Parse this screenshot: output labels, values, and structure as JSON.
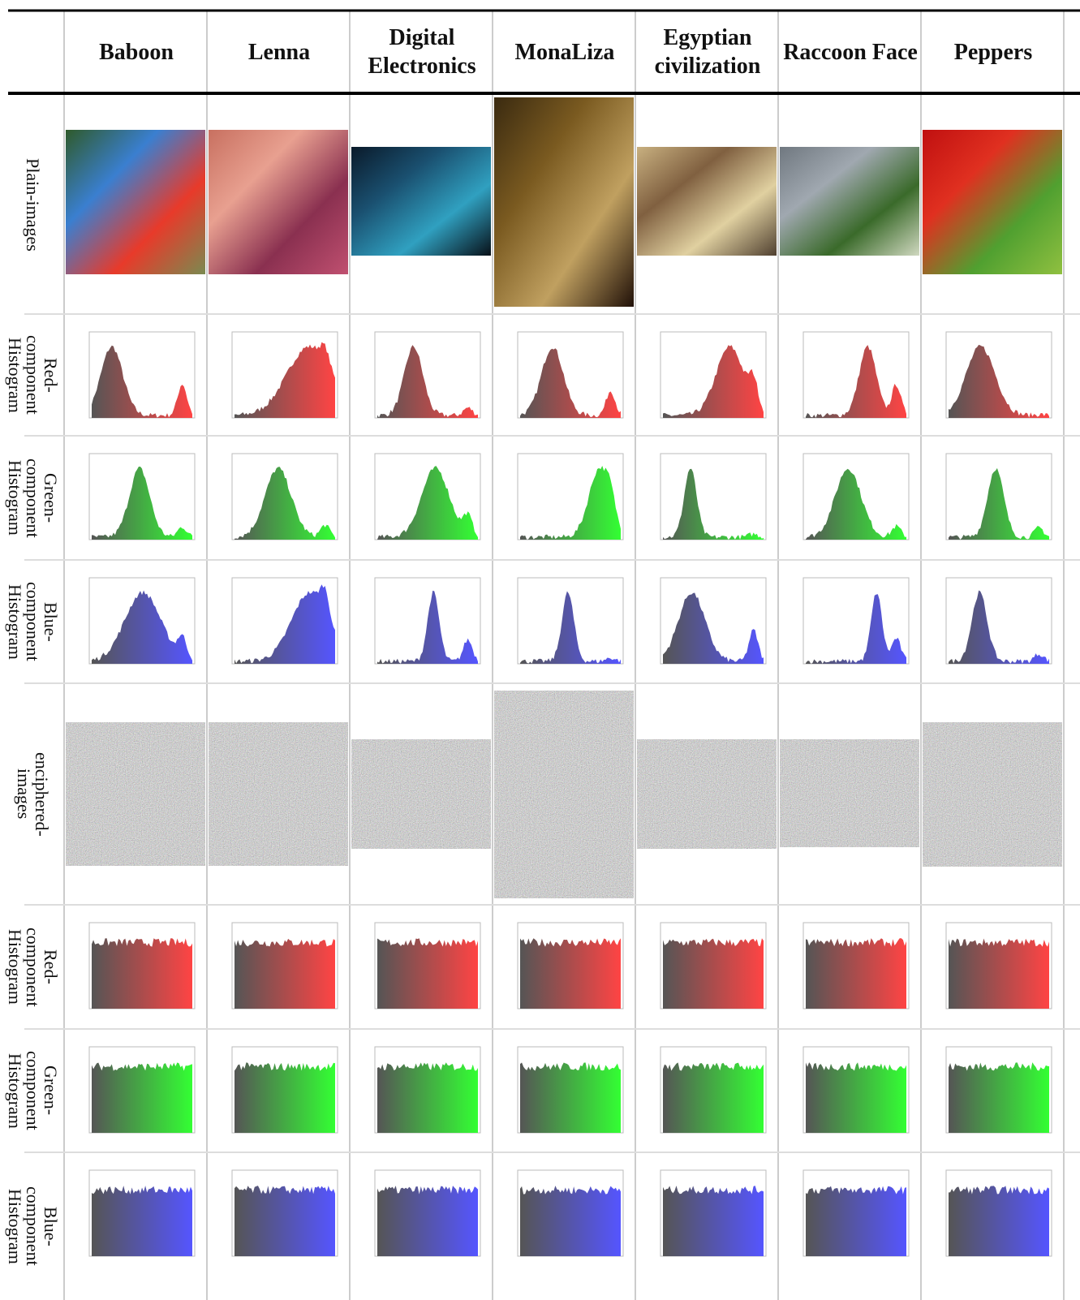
{
  "table": {
    "columns": [
      "Baboon",
      "Lenna",
      "Digital Electronics",
      "MonaLiza",
      "Egyptian civilization",
      "Raccoon Face",
      "Peppers"
    ],
    "rows": [
      "Plain-images",
      "Red-component Histogram",
      "Green-component Histogram",
      "Blue-component Histogram",
      "enciphered-images",
      "Red-component Histogram",
      "Green-component Histogram",
      "Blue-component Histogram"
    ]
  }
}
